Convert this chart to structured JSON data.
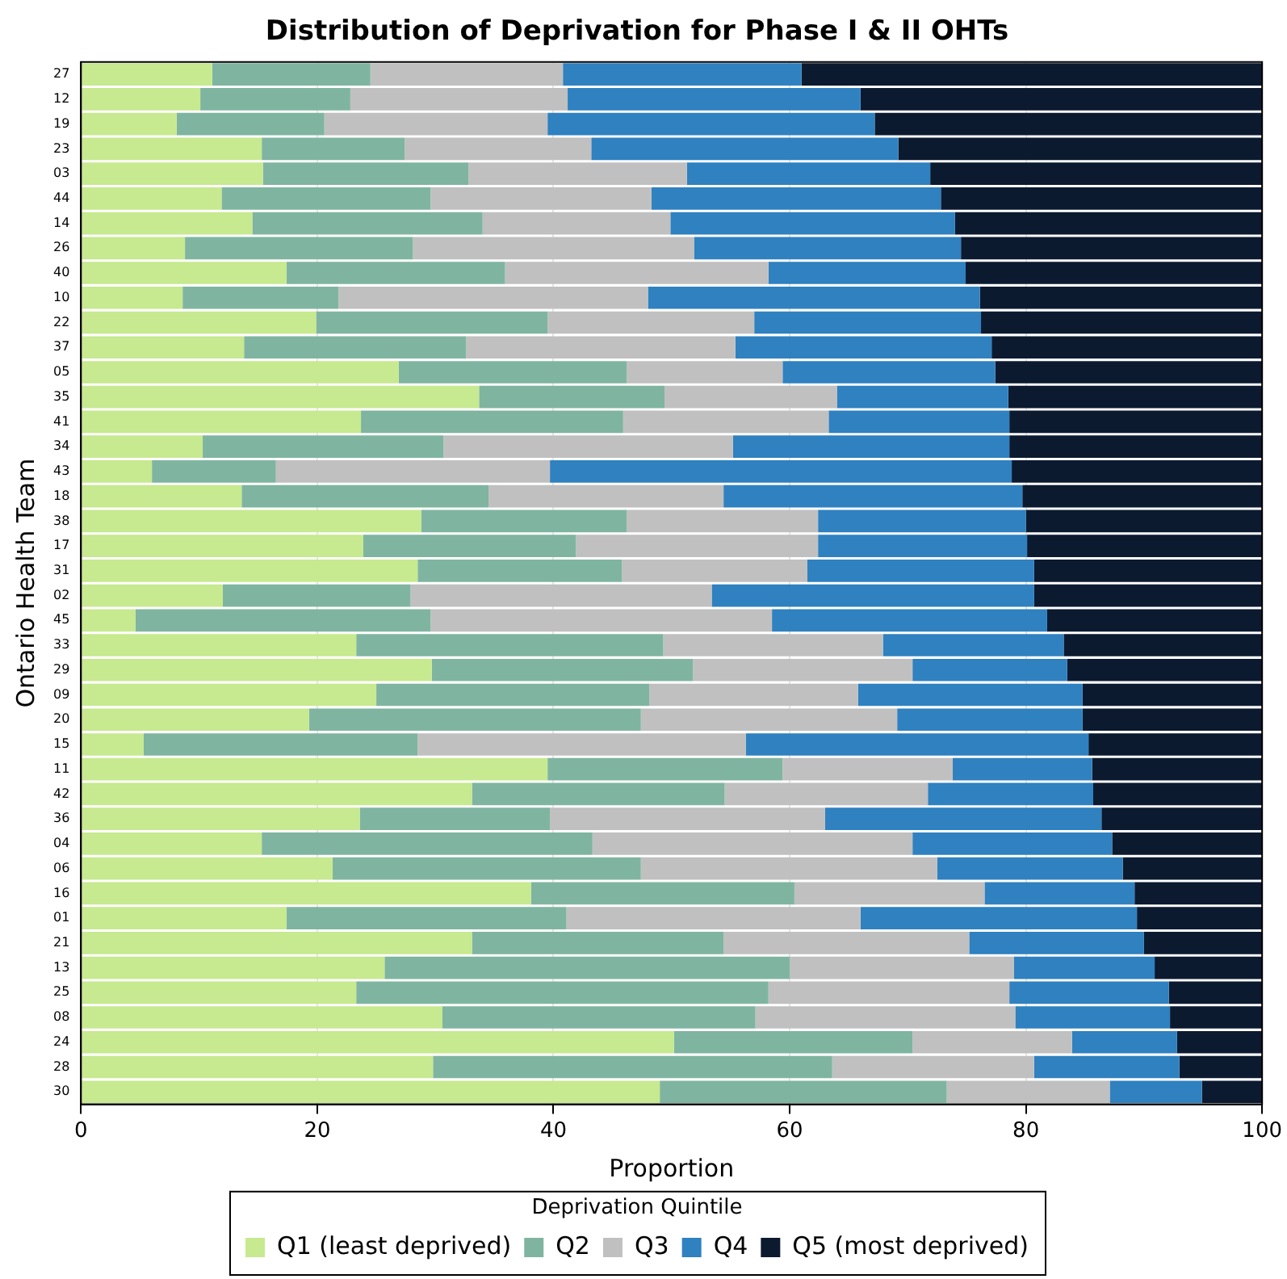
{
  "chart_data": {
    "type": "bar",
    "orientation": "horizontal",
    "stacked": true,
    "title": "Distribution of Deprivation for Phase I & II OHTs",
    "xlabel": "Proportion",
    "ylabel": "Ontario Health Team",
    "legend_title": "Deprivation Quintile",
    "categories": [
      "27",
      "12",
      "19",
      "23",
      "03",
      "44",
      "14",
      "26",
      "40",
      "10",
      "22",
      "37",
      "05",
      "35",
      "41",
      "34",
      "43",
      "18",
      "38",
      "17",
      "31",
      "02",
      "45",
      "33",
      "29",
      "09",
      "20",
      "15",
      "11",
      "42",
      "36",
      "04",
      "06",
      "16",
      "01",
      "21",
      "13",
      "25",
      "08",
      "24",
      "28",
      "30"
    ],
    "xlim": [
      0,
      100
    ],
    "xticks": [
      0,
      20,
      40,
      60,
      80,
      100
    ],
    "grid": "x",
    "legend": "bottom",
    "series": [
      {
        "name": "Q1 (least deprived)",
        "color": "#c7e98f",
        "values": [
          11.1,
          10.1,
          8.1,
          15.3,
          15.4,
          11.9,
          14.5,
          8.8,
          17.4,
          8.6,
          19.9,
          13.8,
          26.9,
          33.7,
          23.7,
          10.3,
          6.0,
          13.6,
          28.8,
          23.9,
          28.5,
          12.0,
          4.6,
          23.3,
          29.7,
          25.0,
          19.3,
          5.3,
          39.5,
          33.1,
          23.6,
          15.3,
          21.3,
          38.1,
          17.4,
          33.1,
          25.7,
          23.3,
          30.6,
          50.2,
          29.8,
          49.0
        ]
      },
      {
        "name": "Q2",
        "color": "#7fb5a0",
        "values": [
          13.4,
          12.7,
          12.5,
          12.1,
          17.4,
          17.7,
          19.5,
          19.3,
          18.5,
          13.2,
          19.6,
          18.8,
          19.3,
          15.7,
          22.2,
          20.4,
          10.5,
          20.9,
          17.4,
          18.0,
          17.3,
          15.9,
          25.0,
          26.0,
          22.1,
          23.1,
          28.1,
          23.2,
          19.9,
          21.4,
          16.1,
          28.0,
          26.1,
          22.3,
          23.7,
          21.3,
          34.3,
          34.9,
          26.5,
          20.2,
          33.8,
          24.3
        ]
      },
      {
        "name": "Q3",
        "color": "#c0c0c0",
        "values": [
          16.3,
          18.4,
          18.9,
          15.8,
          18.5,
          18.7,
          15.9,
          23.8,
          22.3,
          26.2,
          17.5,
          22.8,
          13.2,
          14.6,
          17.4,
          24.5,
          23.2,
          19.9,
          16.2,
          20.5,
          15.7,
          25.5,
          28.9,
          18.6,
          18.6,
          17.7,
          21.7,
          27.8,
          14.4,
          17.2,
          23.3,
          27.1,
          25.1,
          16.1,
          24.9,
          20.8,
          19.0,
          20.4,
          22.0,
          13.5,
          17.1,
          13.8
        ]
      },
      {
        "name": "Q4",
        "color": "#2f81c0",
        "values": [
          20.2,
          24.8,
          27.7,
          26.0,
          20.6,
          24.5,
          24.1,
          22.6,
          16.7,
          28.1,
          19.2,
          21.7,
          18.0,
          14.5,
          15.3,
          23.4,
          39.1,
          25.3,
          17.6,
          17.7,
          19.2,
          27.3,
          23.3,
          15.3,
          13.1,
          19.0,
          15.7,
          29.0,
          11.8,
          14.0,
          23.4,
          16.9,
          15.7,
          12.7,
          23.4,
          14.8,
          11.9,
          13.5,
          13.1,
          8.9,
          12.3,
          7.8
        ]
      },
      {
        "name": "Q5 (most deprived)",
        "color": "#0c1a30",
        "values": [
          39.0,
          34.0,
          32.8,
          30.8,
          28.1,
          27.2,
          26.0,
          25.5,
          25.1,
          23.9,
          23.8,
          22.9,
          22.6,
          21.5,
          21.4,
          21.4,
          21.2,
          20.3,
          20.0,
          19.9,
          19.3,
          19.3,
          18.2,
          16.8,
          16.5,
          15.2,
          15.2,
          14.7,
          14.4,
          14.3,
          13.6,
          12.7,
          11.8,
          10.8,
          10.6,
          10.0,
          9.1,
          7.9,
          7.8,
          7.2,
          7.0,
          5.1
        ]
      }
    ]
  }
}
